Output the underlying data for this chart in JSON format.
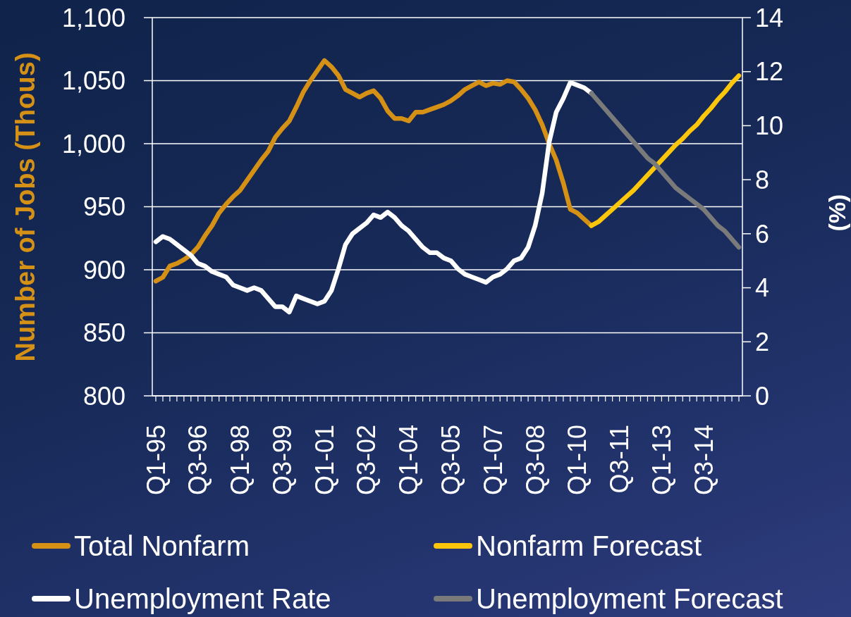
{
  "chart_data": {
    "type": "line",
    "categories": [
      "Q1-95",
      null,
      null,
      null,
      null,
      null,
      "Q3-96",
      null,
      null,
      null,
      null,
      null,
      "Q1-98",
      null,
      null,
      null,
      null,
      null,
      "Q3-99",
      null,
      null,
      null,
      null,
      null,
      "Q1-01",
      null,
      null,
      null,
      null,
      null,
      "Q3-02",
      null,
      null,
      null,
      null,
      null,
      "Q1-04",
      null,
      null,
      null,
      null,
      null,
      "Q3-05",
      null,
      null,
      null,
      null,
      null,
      "Q1-07",
      null,
      null,
      null,
      null,
      null,
      "Q3-08",
      null,
      null,
      null,
      null,
      null,
      "Q1-10",
      null,
      null,
      null,
      null,
      null,
      "Q3-11",
      null,
      null,
      null,
      null,
      null,
      "Q1-13",
      null,
      null,
      null,
      null,
      null,
      "Q3-14",
      null,
      null,
      null,
      null,
      null
    ],
    "series": [
      {
        "name": "Total Nonfarm",
        "color": "#d59016",
        "values": [
          891,
          894,
          903,
          905,
          908,
          912,
          918,
          927,
          935,
          945,
          952,
          958,
          963,
          971,
          979,
          987,
          994,
          1005,
          1012,
          1018,
          1029,
          1041,
          1050,
          1058,
          1066,
          1061,
          1054,
          1043,
          1040,
          1037,
          1040,
          1042,
          1036,
          1026,
          1020,
          1020,
          1018,
          1025,
          1025,
          1027,
          1029,
          1031,
          1034,
          1038,
          1043,
          1046,
          1049,
          1046,
          1048,
          1047,
          1050,
          1049,
          1043,
          1036,
          1027,
          1015,
          1000,
          987,
          969,
          948,
          945,
          940,
          935,
          null,
          null,
          null,
          null,
          null,
          null,
          null,
          null,
          null,
          null,
          null,
          null,
          null,
          null,
          null,
          null,
          null,
          null,
          null,
          null,
          null
        ]
      },
      {
        "name": "Nonfarm Forecast",
        "color": "#fcc70a",
        "values": [
          null,
          null,
          null,
          null,
          null,
          null,
          null,
          null,
          null,
          null,
          null,
          null,
          null,
          null,
          null,
          null,
          null,
          null,
          null,
          null,
          null,
          null,
          null,
          null,
          null,
          null,
          null,
          null,
          null,
          null,
          null,
          null,
          null,
          null,
          null,
          null,
          null,
          null,
          null,
          null,
          null,
          null,
          null,
          null,
          null,
          null,
          null,
          null,
          null,
          null,
          null,
          null,
          null,
          null,
          null,
          null,
          null,
          null,
          null,
          null,
          null,
          null,
          935,
          938,
          943,
          948,
          953,
          958,
          963,
          969,
          975,
          981,
          987,
          993,
          999,
          1004,
          1010,
          1015,
          1022,
          1028,
          1035,
          1041,
          1048,
          1054
        ]
      },
      {
        "name": "Unemployment Rate",
        "color": "#ffffff",
        "axis": "y2",
        "values": [
          5.7,
          5.9,
          5.8,
          5.6,
          5.4,
          5.2,
          4.9,
          4.8,
          4.6,
          4.5,
          4.4,
          4.1,
          4.0,
          3.9,
          4.0,
          3.9,
          3.6,
          3.3,
          3.3,
          3.1,
          3.7,
          3.6,
          3.5,
          3.4,
          3.5,
          3.9,
          4.7,
          5.6,
          6.0,
          6.2,
          6.4,
          6.7,
          6.6,
          6.8,
          6.6,
          6.3,
          6.1,
          5.8,
          5.5,
          5.3,
          5.3,
          5.1,
          5.0,
          4.7,
          4.5,
          4.4,
          4.3,
          4.2,
          4.4,
          4.5,
          4.7,
          5.0,
          5.1,
          5.5,
          6.3,
          7.5,
          9.4,
          10.5,
          11.0,
          11.6,
          11.5,
          11.4,
          11.2,
          null,
          null,
          null,
          null,
          null,
          null,
          null,
          null,
          null,
          null,
          null,
          null,
          null,
          null,
          null,
          null,
          null,
          null,
          null,
          null,
          null
        ]
      },
      {
        "name": "Unemployment Forecast",
        "color": "#7a7a7a",
        "axis": "y2",
        "values": [
          null,
          null,
          null,
          null,
          null,
          null,
          null,
          null,
          null,
          null,
          null,
          null,
          null,
          null,
          null,
          null,
          null,
          null,
          null,
          null,
          null,
          null,
          null,
          null,
          null,
          null,
          null,
          null,
          null,
          null,
          null,
          null,
          null,
          null,
          null,
          null,
          null,
          null,
          null,
          null,
          null,
          null,
          null,
          null,
          null,
          null,
          null,
          null,
          null,
          null,
          null,
          null,
          null,
          null,
          null,
          null,
          null,
          null,
          null,
          null,
          null,
          null,
          11.2,
          10.9,
          10.6,
          10.3,
          10.0,
          9.7,
          9.4,
          9.1,
          8.8,
          8.6,
          8.3,
          8.0,
          7.7,
          7.5,
          7.3,
          7.1,
          6.9,
          6.6,
          6.3,
          6.1,
          5.8,
          5.5
        ]
      }
    ],
    "ylabel": "Number of Jobs (Thous)",
    "y2label": "(%)",
    "ylim": [
      800,
      1100
    ],
    "yticks": [
      800,
      850,
      900,
      950,
      {
        "value": 1000,
        "label": "1,000"
      },
      {
        "value": 1050,
        "label": "1,050"
      },
      {
        "value": 1100,
        "label": "1,100"
      }
    ],
    "y2lim": [
      0,
      14
    ],
    "y2ticks": [
      0,
      2,
      4,
      6,
      8,
      10,
      12,
      14
    ],
    "grid": "y",
    "legend": "bottom"
  }
}
